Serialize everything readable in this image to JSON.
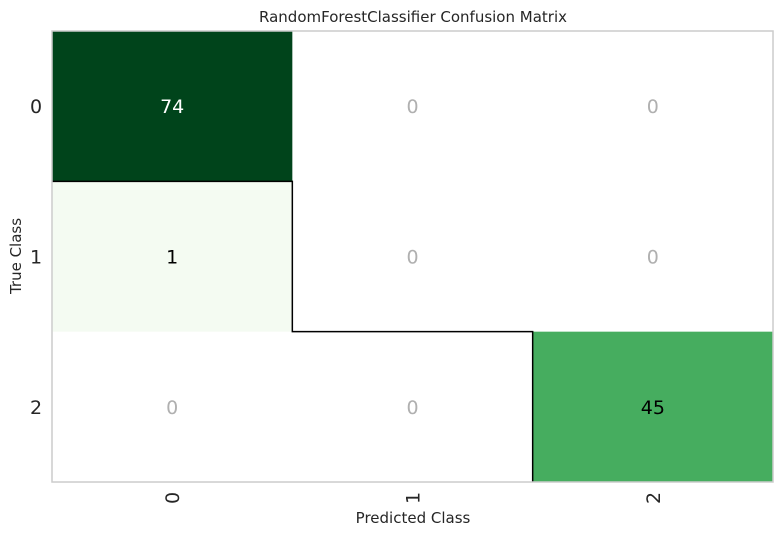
{
  "chart_data": {
    "type": "heatmap",
    "title": "RandomForestClassifier Confusion Matrix",
    "xlabel": "Predicted Class",
    "ylabel": "True Class",
    "x_categories": [
      "0",
      "1",
      "2"
    ],
    "y_categories": [
      "0",
      "1",
      "2"
    ],
    "values": [
      [
        74,
        0,
        0
      ],
      [
        1,
        0,
        0
      ],
      [
        0,
        0,
        45
      ]
    ],
    "colormap": "Greens",
    "colors": {
      "zero_cell": "#ffffff",
      "zero_text": "#b0b0b0",
      "high": "#00441b",
      "mid": "#41ab5d",
      "low": "#f7fcf5",
      "diagonal_outline": "#000000",
      "frame": "#cccccc"
    }
  }
}
